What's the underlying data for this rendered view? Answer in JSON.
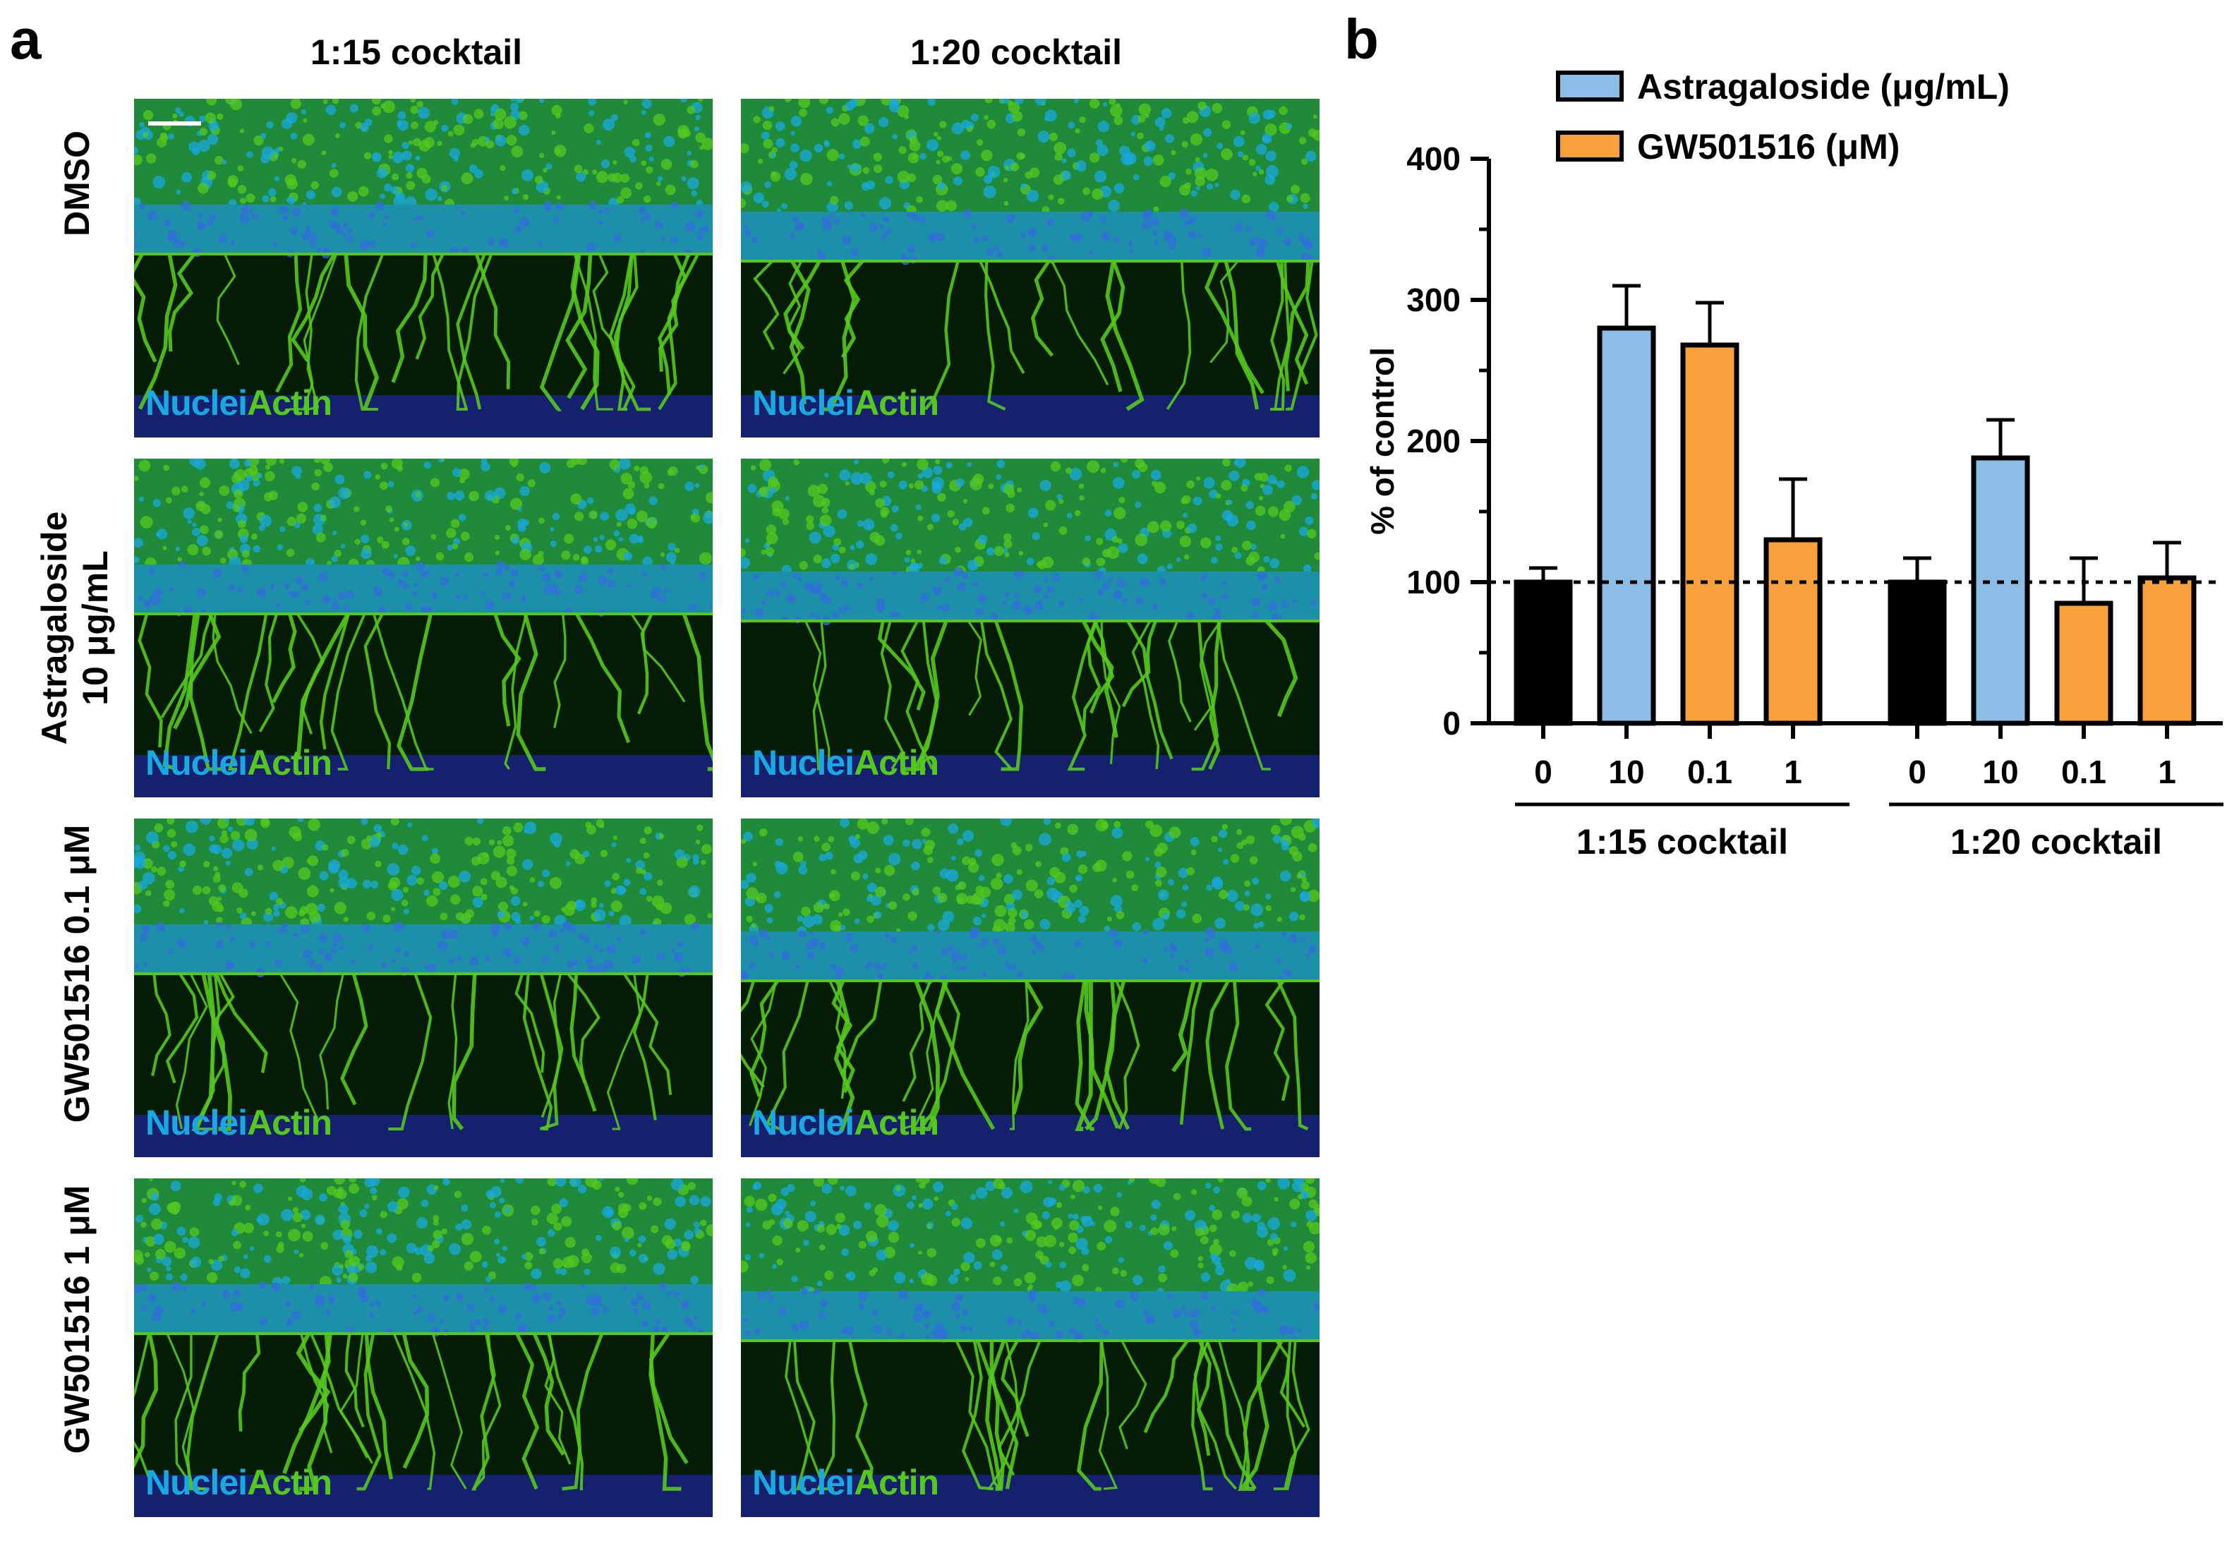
{
  "panels": {
    "a": "a",
    "b": "b"
  },
  "panel_a": {
    "column_titles": [
      "1:15 cocktail",
      "1:20 cocktail"
    ],
    "row_labels": [
      [
        "DMSO"
      ],
      [
        "Astragaloside",
        "10 μg/mL"
      ],
      [
        "GW501516 0.1 μM"
      ],
      [
        "GW501516 1 μM"
      ]
    ],
    "stain_labels": {
      "nuclei": "Nuclei",
      "actin": "Actin"
    },
    "colors": {
      "nuclei": "#1aa8e0",
      "actin": "#55c81e",
      "background": "#041c06"
    }
  },
  "chart_data": {
    "type": "bar",
    "ylabel": "% of control",
    "ylim": [
      0,
      400
    ],
    "yticks": [
      0,
      100,
      200,
      300,
      400
    ],
    "reference_line": 100,
    "legend": [
      {
        "label": "Astragaloside (μg/mL)",
        "color": "#8bbde6"
      },
      {
        "label": "GW501516 (μM)",
        "color": "#f8a03c"
      }
    ],
    "control_color": "#000000",
    "groups": [
      {
        "label": "1:15 cocktail",
        "bars": [
          {
            "x": "0",
            "value": 100,
            "error": 10,
            "series": "control"
          },
          {
            "x": "10",
            "value": 280,
            "error": 30,
            "series": "Astragaloside"
          },
          {
            "x": "0.1",
            "value": 268,
            "error": 30,
            "series": "GW501516"
          },
          {
            "x": "1",
            "value": 130,
            "error": 43,
            "series": "GW501516"
          }
        ]
      },
      {
        "label": "1:20 cocktail",
        "bars": [
          {
            "x": "0",
            "value": 100,
            "error": 17,
            "series": "control"
          },
          {
            "x": "10",
            "value": 188,
            "error": 27,
            "series": "Astragaloside"
          },
          {
            "x": "0.1",
            "value": 85,
            "error": 32,
            "series": "GW501516"
          },
          {
            "x": "1",
            "value": 103,
            "error": 25,
            "series": "GW501516"
          }
        ]
      }
    ]
  }
}
